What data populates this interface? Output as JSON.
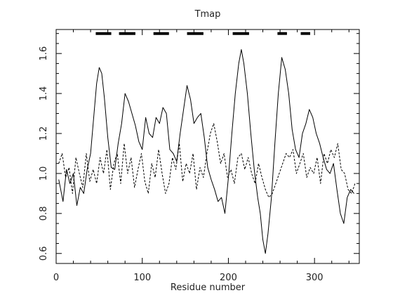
{
  "chart_data": {
    "type": "line",
    "title": "Tmap",
    "xlabel": "Residue number",
    "ylabel": "",
    "xlim": [
      0,
      352
    ],
    "ylim": [
      0.55,
      1.72
    ],
    "xticks": [
      0,
      100,
      200,
      300
    ],
    "xtick_labels": [
      "0",
      "100",
      "200",
      "300"
    ],
    "yticks": [
      0.6,
      0.8,
      1.0,
      1.2,
      1.4,
      1.6
    ],
    "ytick_labels": [
      "0.6",
      "0.8",
      "1.0",
      "1.2",
      "1.4",
      "1.6"
    ],
    "grid": false,
    "series": [
      {
        "style": "solid",
        "color": "#000000",
        "x": [
          3,
          8,
          12,
          16,
          20,
          24,
          28,
          32,
          36,
          40,
          44,
          47,
          50,
          53,
          56,
          60,
          64,
          68,
          72,
          76,
          80,
          84,
          88,
          92,
          96,
          100,
          104,
          108,
          112,
          116,
          120,
          124,
          128,
          132,
          136,
          140,
          144,
          148,
          152,
          156,
          160,
          164,
          168,
          172,
          176,
          180,
          184,
          188,
          192,
          196,
          200,
          204,
          208,
          212,
          215,
          218,
          222,
          226,
          230,
          234,
          237,
          240,
          243,
          246,
          250,
          254,
          258,
          262,
          266,
          270,
          274,
          278,
          282,
          286,
          290,
          294,
          298,
          302,
          306,
          310,
          314,
          318,
          322,
          326,
          330,
          334,
          338,
          342,
          346
        ],
        "y": [
          0.97,
          0.86,
          1.02,
          0.95,
          1.0,
          0.84,
          0.93,
          0.9,
          1.02,
          1.1,
          1.3,
          1.45,
          1.53,
          1.5,
          1.38,
          1.18,
          1.03,
          1.02,
          1.15,
          1.25,
          1.4,
          1.36,
          1.3,
          1.24,
          1.16,
          1.12,
          1.28,
          1.2,
          1.18,
          1.28,
          1.25,
          1.33,
          1.3,
          1.12,
          1.1,
          1.06,
          1.2,
          1.32,
          1.44,
          1.37,
          1.25,
          1.28,
          1.3,
          1.18,
          1.03,
          0.97,
          0.92,
          0.86,
          0.88,
          0.8,
          0.98,
          1.2,
          1.4,
          1.55,
          1.62,
          1.55,
          1.4,
          1.2,
          1.02,
          0.88,
          0.8,
          0.67,
          0.6,
          0.7,
          0.88,
          1.15,
          1.4,
          1.58,
          1.52,
          1.4,
          1.22,
          1.12,
          1.08,
          1.2,
          1.25,
          1.32,
          1.28,
          1.2,
          1.15,
          1.08,
          1.02,
          1.0,
          1.05,
          0.92,
          0.8,
          0.75,
          0.88,
          0.92,
          0.9
        ]
      },
      {
        "style": "dashed",
        "color": "#000000",
        "x": [
          3,
          7,
          11,
          15,
          19,
          23,
          27,
          31,
          35,
          39,
          43,
          47,
          51,
          55,
          59,
          63,
          67,
          71,
          75,
          79,
          83,
          87,
          91,
          95,
          99,
          103,
          107,
          111,
          115,
          119,
          123,
          127,
          131,
          135,
          139,
          143,
          147,
          151,
          155,
          159,
          163,
          167,
          171,
          175,
          179,
          183,
          187,
          191,
          195,
          199,
          203,
          207,
          211,
          215,
          219,
          223,
          227,
          231,
          235,
          239,
          243,
          247,
          251,
          255,
          259,
          263,
          267,
          271,
          275,
          279,
          283,
          287,
          291,
          295,
          299,
          303,
          307,
          311,
          315,
          319,
          323,
          327,
          331,
          335,
          339,
          343,
          347
        ],
        "y": [
          1.05,
          1.1,
          0.98,
          1.03,
          0.9,
          1.08,
          1.0,
          0.93,
          1.1,
          0.96,
          1.02,
          0.95,
          1.08,
          1.0,
          1.12,
          0.92,
          1.05,
          1.1,
          0.95,
          1.15,
          1.0,
          1.08,
          0.93,
          1.02,
          1.1,
          0.96,
          0.9,
          1.05,
          0.98,
          1.12,
          1.0,
          0.9,
          0.95,
          1.08,
          1.02,
          1.15,
          0.96,
          1.05,
          1.0,
          1.1,
          0.92,
          1.03,
          0.98,
          1.1,
          1.2,
          1.25,
          1.16,
          1.05,
          1.1,
          0.98,
          1.02,
          0.95,
          1.08,
          1.1,
          1.02,
          1.08,
          1.0,
          0.95,
          1.05,
          0.98,
          0.92,
          0.88,
          0.9,
          0.95,
          1.0,
          1.05,
          1.1,
          1.08,
          1.12,
          1.0,
          1.05,
          1.1,
          0.98,
          1.03,
          1.0,
          1.08,
          0.95,
          1.1,
          1.05,
          1.12,
          1.08,
          1.15,
          1.02,
          1.0,
          0.92,
          0.9,
          0.95
        ]
      }
    ],
    "segments": [
      {
        "x0": 46,
        "x1": 64,
        "y": 1.7
      },
      {
        "x0": 73,
        "x1": 92,
        "y": 1.7
      },
      {
        "x0": 113,
        "x1": 131,
        "y": 1.7
      },
      {
        "x0": 152,
        "x1": 171,
        "y": 1.7
      },
      {
        "x0": 205,
        "x1": 224,
        "y": 1.7
      },
      {
        "x0": 257,
        "x1": 268,
        "y": 1.7
      },
      {
        "x0": 284,
        "x1": 295,
        "y": 1.7
      }
    ]
  }
}
